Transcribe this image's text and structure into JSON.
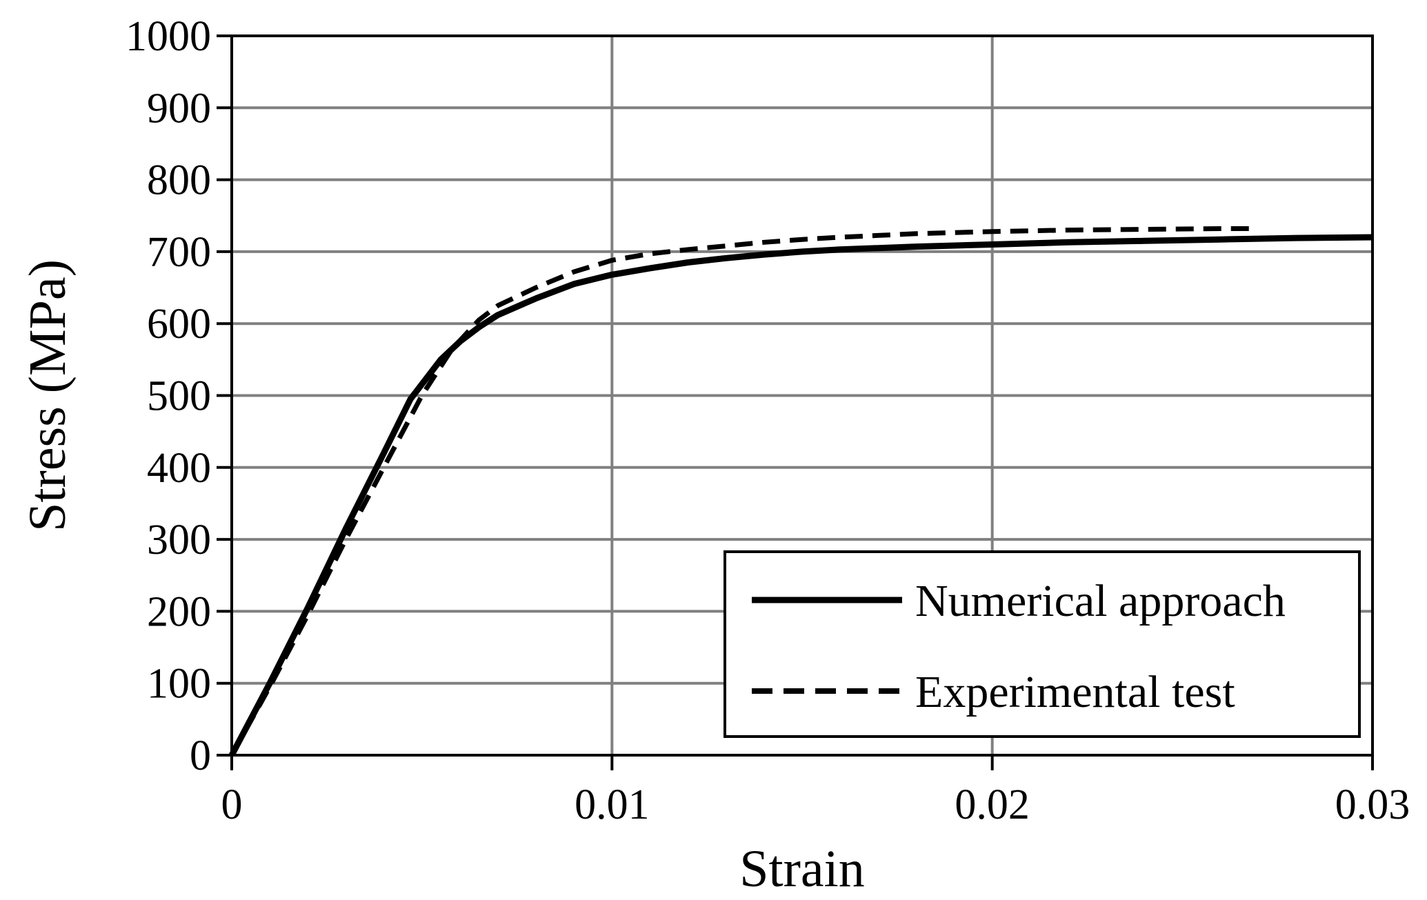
{
  "chart_data": {
    "type": "line",
    "title": "",
    "xlabel": "Strain",
    "ylabel": "Stress (MPa)",
    "xlim": [
      0,
      0.03
    ],
    "ylim": [
      0,
      1000
    ],
    "xticks": [
      0,
      0.01,
      0.02,
      0.03
    ],
    "xtick_labels": [
      "0",
      "0.01",
      "0.02",
      "0.03"
    ],
    "yticks": [
      0,
      100,
      200,
      300,
      400,
      500,
      600,
      700,
      800,
      900,
      1000
    ],
    "ytick_labels": [
      "0",
      "100",
      "200",
      "300",
      "400",
      "500",
      "600",
      "700",
      "800",
      "900",
      "1000"
    ],
    "grid": true,
    "legend_position": "bottom-right",
    "colors": {
      "line": "#000000",
      "grid": "#808080",
      "axis": "#000000"
    },
    "series": [
      {
        "name": "Numerical approach",
        "style": "solid",
        "x": [
          0,
          0.001,
          0.002,
          0.003,
          0.004,
          0.0047,
          0.0055,
          0.006,
          0.0065,
          0.007,
          0.008,
          0.009,
          0.01,
          0.011,
          0.012,
          0.013,
          0.014,
          0.015,
          0.016,
          0.018,
          0.02,
          0.022,
          0.024,
          0.026,
          0.028,
          0.03
        ],
        "y": [
          0,
          100,
          205,
          315,
          420,
          495,
          550,
          575,
          595,
          612,
          635,
          655,
          668,
          677,
          685,
          691,
          696,
          700,
          703,
          707,
          710,
          713,
          715,
          717,
          719,
          720
        ]
      },
      {
        "name": "Experimental test",
        "style": "dashed",
        "x": [
          0,
          0.001,
          0.002,
          0.003,
          0.004,
          0.005,
          0.0058,
          0.0065,
          0.007,
          0.008,
          0.009,
          0.01,
          0.011,
          0.012,
          0.013,
          0.014,
          0.015,
          0.016,
          0.018,
          0.02,
          0.022,
          0.024,
          0.026,
          0.027
        ],
        "y": [
          0,
          95,
          195,
          300,
          400,
          500,
          565,
          605,
          625,
          650,
          672,
          688,
          697,
          703,
          708,
          713,
          717,
          720,
          725,
          728,
          730,
          731,
          732,
          732
        ]
      }
    ]
  }
}
